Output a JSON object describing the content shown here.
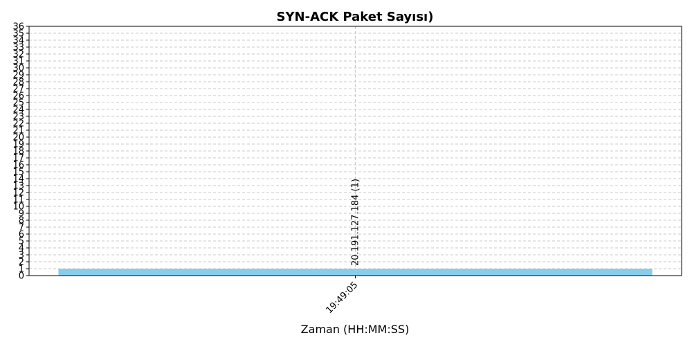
{
  "chart_data": {
    "type": "bar",
    "title": "SYN-ACK Paket Sayısı)",
    "xlabel": "Zaman (HH:MM:SS)",
    "ylabel": "",
    "categories": [
      "19:49:05"
    ],
    "series": [
      {
        "values": [
          1
        ],
        "data_labels": [
          "20.191.127.184 (1)"
        ]
      }
    ],
    "ylim": [
      0,
      36
    ],
    "ytick_step": 1,
    "grid": true,
    "grid_style": "dashed",
    "bar_color": "#87CEEB"
  }
}
